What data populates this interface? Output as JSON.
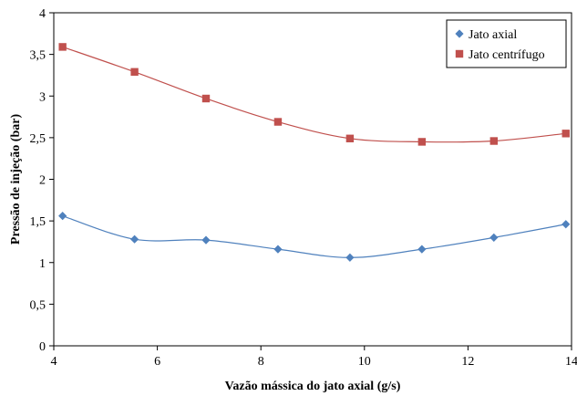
{
  "chart_data": {
    "type": "line",
    "title": "",
    "xlabel": "Vazão mássica do jato axial (g/s)",
    "ylabel": "Pressão de injeção (bar)",
    "xlim": [
      4,
      14
    ],
    "ylim": [
      0,
      4
    ],
    "x_ticks": [
      4,
      6,
      8,
      10,
      12,
      14
    ],
    "x_tick_labels": [
      "4",
      "6",
      "8",
      "10",
      "12",
      "14"
    ],
    "y_ticks": [
      0,
      0.5,
      1,
      1.5,
      2,
      2.5,
      3,
      3.5,
      4
    ],
    "y_tick_labels": [
      "0",
      "0,5",
      "1",
      "1,5",
      "2",
      "2,5",
      "3",
      "3,5",
      "4"
    ],
    "grid": false,
    "legend_position": "top-right",
    "series": [
      {
        "name": "Jato axial",
        "color": "#4F81BD",
        "marker": "diamond",
        "x": [
          4.17,
          5.56,
          6.94,
          8.33,
          9.72,
          11.11,
          12.5,
          13.89
        ],
        "y": [
          1.56,
          1.28,
          1.27,
          1.16,
          1.06,
          1.16,
          1.3,
          1.46
        ]
      },
      {
        "name": "Jato centrífugo",
        "color": "#C0504D",
        "marker": "square",
        "x": [
          4.17,
          5.56,
          6.94,
          8.33,
          9.72,
          11.11,
          12.5,
          13.89
        ],
        "y": [
          3.59,
          3.29,
          2.97,
          2.69,
          2.49,
          2.45,
          2.46,
          2.55
        ]
      }
    ]
  }
}
